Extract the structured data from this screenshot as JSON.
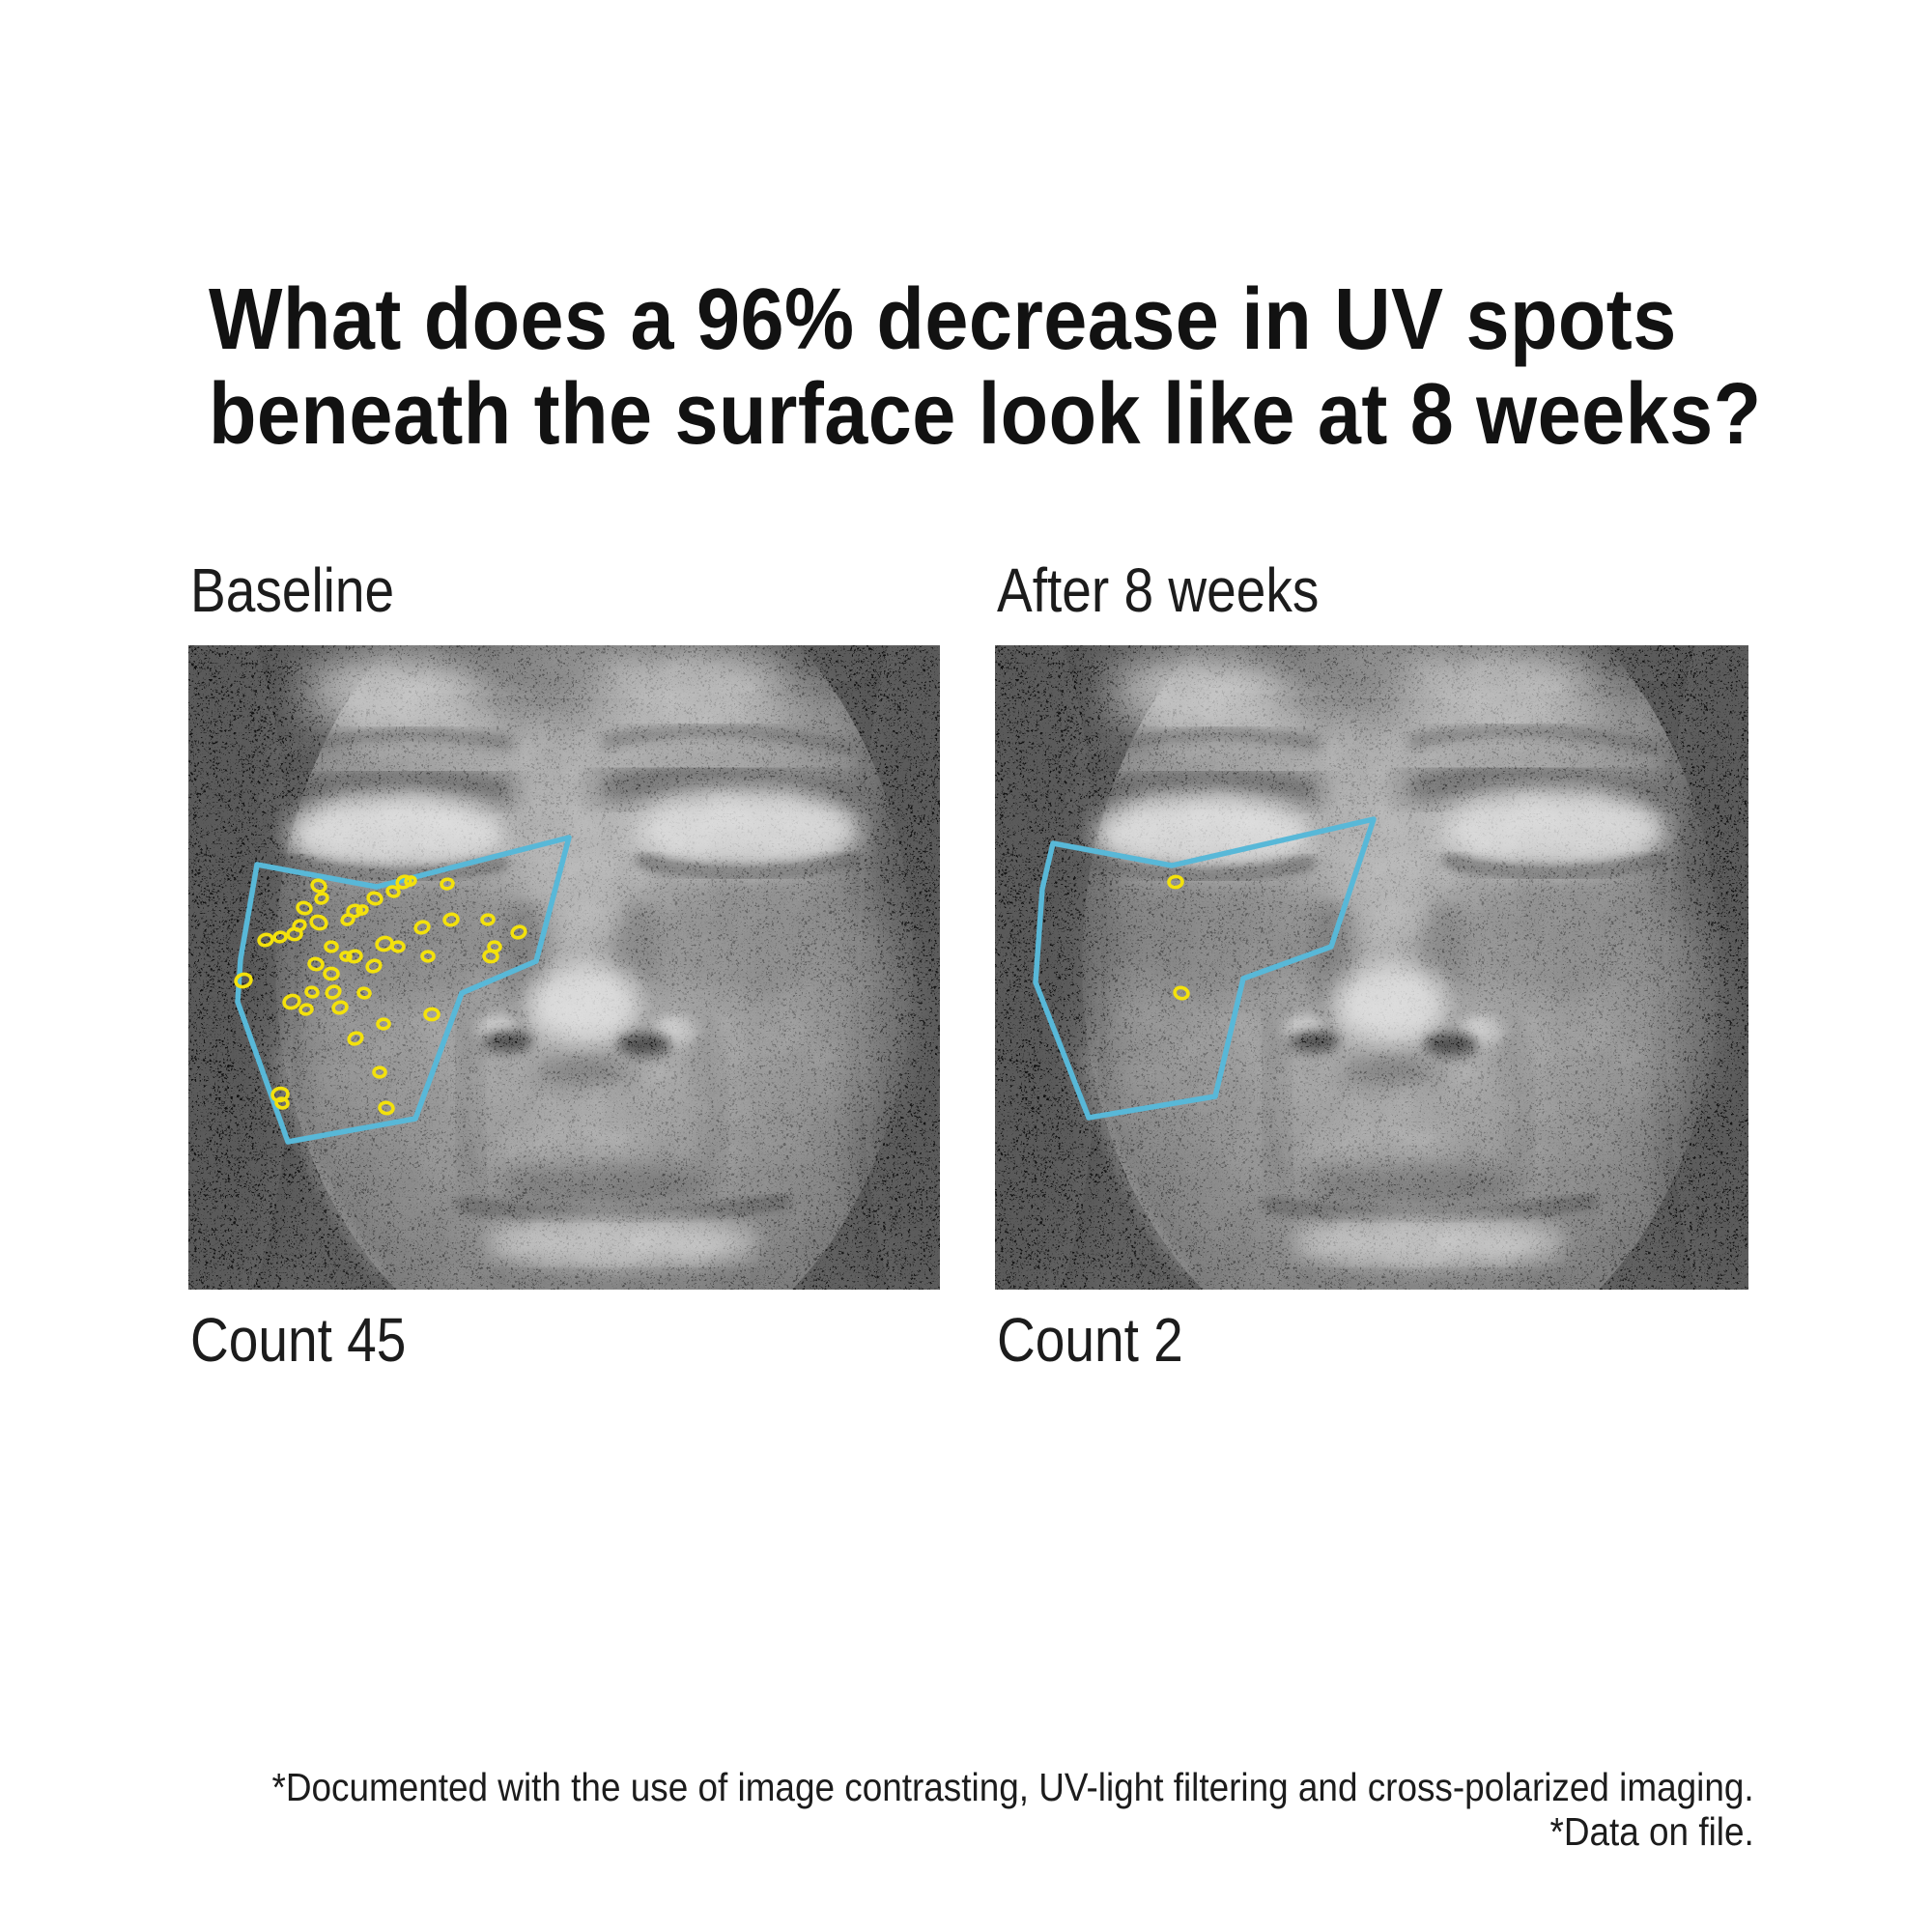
{
  "page": {
    "background": "#ffffff",
    "text_color": "#161616"
  },
  "headline": {
    "line1": "What does a 96% decrease in UV spots",
    "line2": "beneath the surface look like at 8 weeks?"
  },
  "comparison": {
    "annotation_style": {
      "region_color": "#58b8d8",
      "spot_color": "#f3e10c"
    },
    "panels": [
      {
        "label": "Baseline",
        "count_label": "Count 45",
        "count": 45,
        "region_outline": [
          [
            71,
            227
          ],
          [
            195,
            250
          ],
          [
            394,
            199
          ],
          [
            360,
            327
          ],
          [
            283,
            360
          ],
          [
            235,
            490
          ],
          [
            103,
            514
          ],
          [
            51,
            369
          ],
          [
            54,
            325
          ]
        ],
        "spots": [
          [
            135,
            249,
            7
          ],
          [
            138,
            262,
            6
          ],
          [
            120,
            272,
            7
          ],
          [
            135,
            287,
            8
          ],
          [
            115,
            290,
            6
          ],
          [
            80,
            305,
            7
          ],
          [
            95,
            302,
            6
          ],
          [
            110,
            299,
            7
          ],
          [
            57,
            347,
            8
          ],
          [
            132,
            330,
            7
          ],
          [
            148,
            312,
            6
          ],
          [
            172,
            275,
            7
          ],
          [
            180,
            274,
            5
          ],
          [
            165,
            284,
            6
          ],
          [
            172,
            322,
            7
          ],
          [
            163,
            322,
            5
          ],
          [
            148,
            340,
            7
          ],
          [
            128,
            359,
            6
          ],
          [
            150,
            359,
            7
          ],
          [
            107,
            369,
            8
          ],
          [
            122,
            377,
            6
          ],
          [
            157,
            375,
            7
          ],
          [
            182,
            360,
            6
          ],
          [
            192,
            332,
            7
          ],
          [
            203,
            309,
            8
          ],
          [
            217,
            312,
            6
          ],
          [
            193,
            262,
            7
          ],
          [
            212,
            255,
            6
          ],
          [
            223,
            245,
            7
          ],
          [
            230,
            244,
            5
          ],
          [
            242,
            292,
            7
          ],
          [
            248,
            322,
            6
          ],
          [
            252,
            382,
            7
          ],
          [
            202,
            392,
            6
          ],
          [
            173,
            407,
            7
          ],
          [
            198,
            442,
            6
          ],
          [
            205,
            479,
            7
          ],
          [
            95,
            465,
            8
          ],
          [
            97,
            474,
            6
          ],
          [
            268,
            247,
            6
          ],
          [
            272,
            284,
            7
          ],
          [
            310,
            284,
            6
          ],
          [
            342,
            297,
            7
          ],
          [
            317,
            312,
            6
          ],
          [
            313,
            322,
            7
          ]
        ]
      },
      {
        "label": "After 8 weeks",
        "count_label": "Count 2",
        "count": 2,
        "region_outline": [
          [
            60,
            205
          ],
          [
            183,
            228
          ],
          [
            392,
            180
          ],
          [
            348,
            312
          ],
          [
            257,
            345
          ],
          [
            228,
            467
          ],
          [
            97,
            489
          ],
          [
            42,
            349
          ],
          [
            49,
            252
          ]
        ],
        "spots": [
          [
            187,
            245,
            7
          ],
          [
            193,
            360,
            7
          ]
        ]
      }
    ]
  },
  "footnotes": {
    "line1": "*Documented with the use of image contrasting, UV-light filtering and cross-polarized imaging.",
    "line2": "*Data on file."
  }
}
